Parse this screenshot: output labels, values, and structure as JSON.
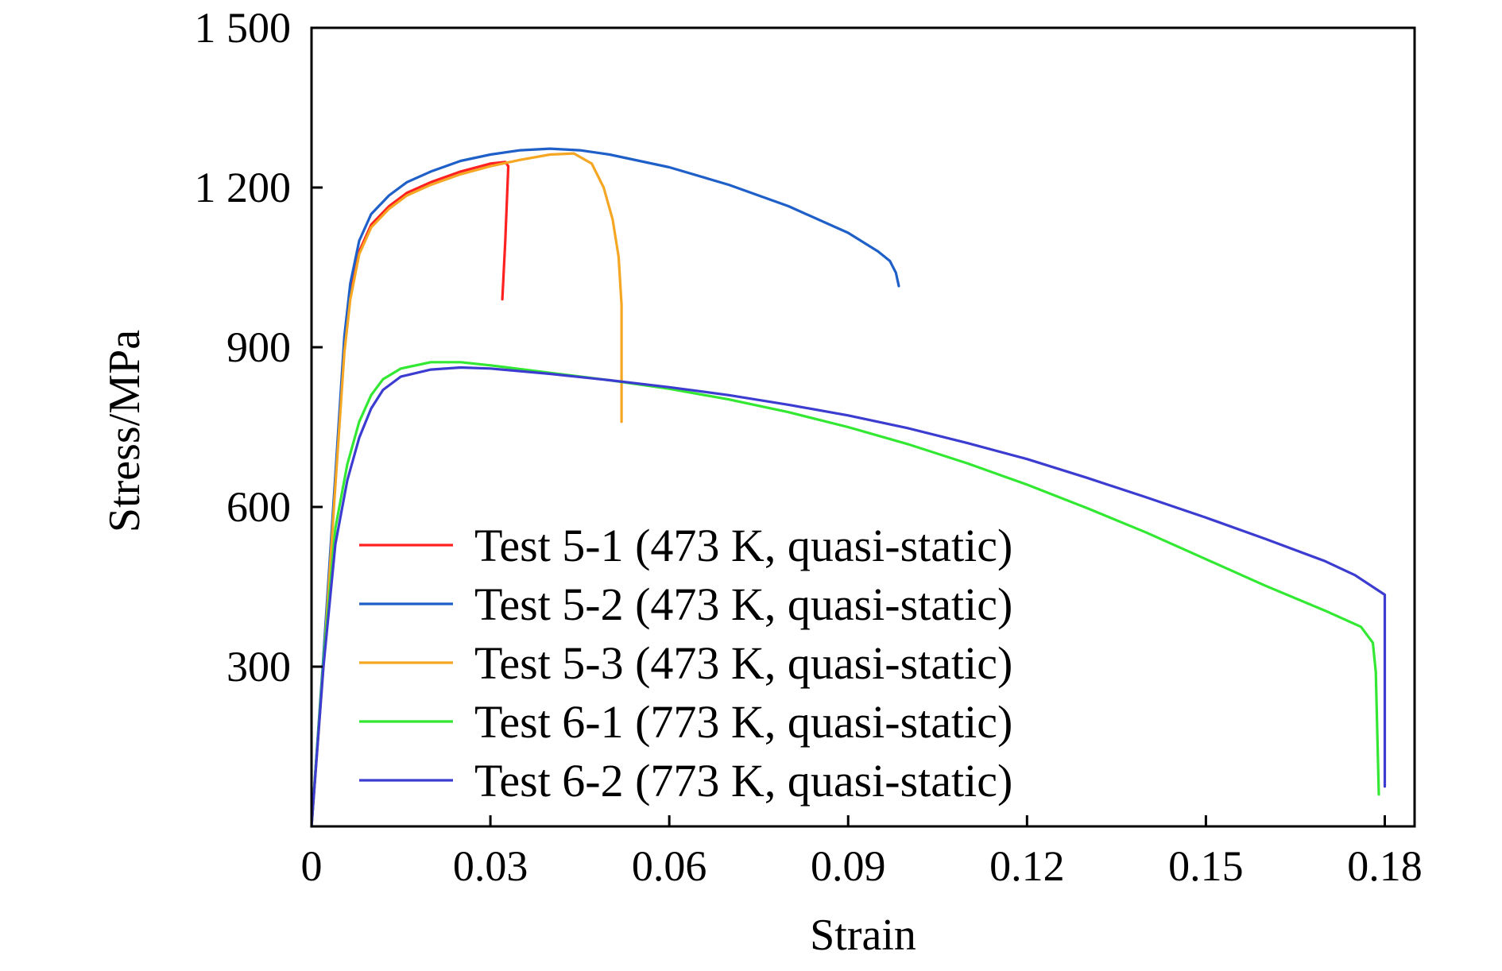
{
  "chart_data": {
    "type": "line",
    "title": "",
    "xlabel": "Strain",
    "ylabel": "Stress/MPa",
    "xlim": [
      0,
      0.185
    ],
    "ylim": [
      0,
      1500
    ],
    "x_ticks": [
      0,
      0.03,
      0.06,
      0.09,
      0.12,
      0.15,
      0.18
    ],
    "x_tick_labels": [
      "0",
      "0.03",
      "0.06",
      "0.09",
      "0.12",
      "0.15",
      "0.18"
    ],
    "y_ticks": [
      300,
      600,
      900,
      1200,
      1500
    ],
    "y_tick_labels": [
      "300",
      "600",
      "900",
      "1 200",
      "1 500"
    ],
    "grid": false,
    "legend_position": "bottom-left",
    "series": [
      {
        "name": "Test 5-1 (473 K, quasi-static)",
        "color": "#ff2020",
        "points": [
          [
            0,
            0
          ],
          [
            0.002,
            310
          ],
          [
            0.004,
            650
          ],
          [
            0.0055,
            900
          ],
          [
            0.0065,
            1000
          ],
          [
            0.008,
            1080
          ],
          [
            0.01,
            1130
          ],
          [
            0.013,
            1165
          ],
          [
            0.016,
            1190
          ],
          [
            0.02,
            1210
          ],
          [
            0.025,
            1230
          ],
          [
            0.03,
            1245
          ],
          [
            0.0325,
            1248
          ],
          [
            0.033,
            1240
          ],
          [
            0.0325,
            1100
          ],
          [
            0.032,
            990
          ]
        ]
      },
      {
        "name": "Test 5-2 (473 K, quasi-static)",
        "color": "#1f5fc8",
        "points": [
          [
            0,
            0
          ],
          [
            0.002,
            320
          ],
          [
            0.004,
            660
          ],
          [
            0.0055,
            920
          ],
          [
            0.0065,
            1020
          ],
          [
            0.008,
            1100
          ],
          [
            0.01,
            1150
          ],
          [
            0.013,
            1185
          ],
          [
            0.016,
            1210
          ],
          [
            0.02,
            1230
          ],
          [
            0.025,
            1250
          ],
          [
            0.03,
            1262
          ],
          [
            0.035,
            1270
          ],
          [
            0.04,
            1273
          ],
          [
            0.045,
            1270
          ],
          [
            0.05,
            1262
          ],
          [
            0.06,
            1238
          ],
          [
            0.07,
            1205
          ],
          [
            0.08,
            1165
          ],
          [
            0.09,
            1115
          ],
          [
            0.095,
            1080
          ],
          [
            0.097,
            1062
          ],
          [
            0.098,
            1040
          ],
          [
            0.0985,
            1015
          ]
        ]
      },
      {
        "name": "Test 5-3 (473 K, quasi-static)",
        "color": "#f5a623",
        "points": [
          [
            0,
            0
          ],
          [
            0.002,
            300
          ],
          [
            0.004,
            640
          ],
          [
            0.0055,
            890
          ],
          [
            0.0065,
            990
          ],
          [
            0.008,
            1075
          ],
          [
            0.01,
            1125
          ],
          [
            0.013,
            1160
          ],
          [
            0.016,
            1185
          ],
          [
            0.02,
            1205
          ],
          [
            0.025,
            1225
          ],
          [
            0.03,
            1240
          ],
          [
            0.035,
            1252
          ],
          [
            0.04,
            1262
          ],
          [
            0.044,
            1264
          ],
          [
            0.047,
            1245
          ],
          [
            0.049,
            1200
          ],
          [
            0.0505,
            1140
          ],
          [
            0.0515,
            1070
          ],
          [
            0.052,
            980
          ],
          [
            0.052,
            760
          ]
        ]
      },
      {
        "name": "Test 6-1 (773 K, quasi-static)",
        "color": "#33e833",
        "points": [
          [
            0,
            0
          ],
          [
            0.002,
            310
          ],
          [
            0.004,
            560
          ],
          [
            0.006,
            680
          ],
          [
            0.008,
            760
          ],
          [
            0.01,
            810
          ],
          [
            0.012,
            840
          ],
          [
            0.015,
            860
          ],
          [
            0.02,
            872
          ],
          [
            0.025,
            872
          ],
          [
            0.03,
            866
          ],
          [
            0.04,
            852
          ],
          [
            0.05,
            838
          ],
          [
            0.06,
            822
          ],
          [
            0.07,
            802
          ],
          [
            0.08,
            778
          ],
          [
            0.09,
            750
          ],
          [
            0.1,
            718
          ],
          [
            0.11,
            682
          ],
          [
            0.12,
            642
          ],
          [
            0.13,
            598
          ],
          [
            0.14,
            552
          ],
          [
            0.15,
            502
          ],
          [
            0.16,
            452
          ],
          [
            0.17,
            405
          ],
          [
            0.176,
            375
          ],
          [
            0.178,
            345
          ],
          [
            0.1785,
            290
          ],
          [
            0.1788,
            150
          ],
          [
            0.179,
            60
          ]
        ]
      },
      {
        "name": "Test 6-2 (773 K, quasi-static)",
        "color": "#3c3cd0",
        "points": [
          [
            0,
            0
          ],
          [
            0.002,
            300
          ],
          [
            0.004,
            530
          ],
          [
            0.006,
            650
          ],
          [
            0.008,
            730
          ],
          [
            0.01,
            785
          ],
          [
            0.012,
            820
          ],
          [
            0.015,
            845
          ],
          [
            0.02,
            858
          ],
          [
            0.025,
            862
          ],
          [
            0.03,
            860
          ],
          [
            0.04,
            850
          ],
          [
            0.05,
            838
          ],
          [
            0.06,
            825
          ],
          [
            0.07,
            810
          ],
          [
            0.08,
            792
          ],
          [
            0.09,
            772
          ],
          [
            0.1,
            748
          ],
          [
            0.11,
            720
          ],
          [
            0.12,
            690
          ],
          [
            0.13,
            655
          ],
          [
            0.14,
            618
          ],
          [
            0.15,
            580
          ],
          [
            0.16,
            540
          ],
          [
            0.17,
            498
          ],
          [
            0.175,
            472
          ],
          [
            0.18,
            435
          ],
          [
            0.18,
            75
          ]
        ]
      }
    ]
  }
}
